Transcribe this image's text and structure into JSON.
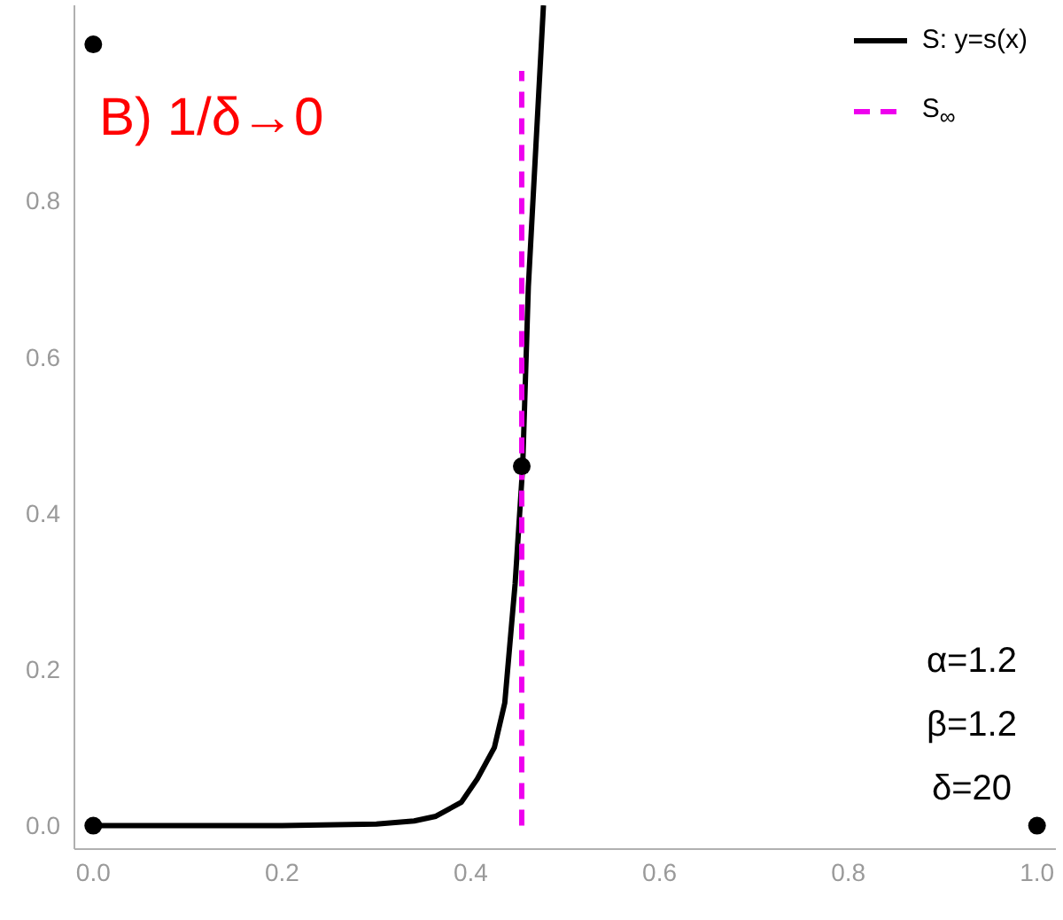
{
  "chart_data": {
    "type": "line",
    "annotations": [
      "B) 1/δ→0",
      "α=1.2",
      "β=1.2",
      "δ=20"
    ],
    "xlim": [
      -0.02,
      1.02
    ],
    "xticks": [
      {
        "value": 0,
        "label": "0.0"
      },
      0.2,
      0.4,
      0.6,
      0.8,
      {
        "value": 1,
        "label": "1.0"
      }
    ],
    "ylim": [
      -0.03,
      1.05
    ],
    "yticks": [
      {
        "value": 0,
        "label": "0.0"
      },
      0.2,
      0.4,
      0.6,
      0.8
    ],
    "legend": "top right",
    "marker": "none",
    "series": [
      {
        "name": "S: y=s(x)",
        "color": "#000000",
        "line_style": "solid",
        "x": [
          0,
          0.2,
          0.3,
          0.34,
          0.363,
          0.39,
          0.407,
          0.425,
          0.436,
          0.447,
          0.455,
          0.461,
          0.469,
          0.477
        ],
        "values": [
          0,
          0,
          0.002,
          0.006,
          0.012,
          0.03,
          0.06,
          0.1,
          0.157,
          0.31,
          0.46,
          0.69,
          0.87,
          1.05
        ]
      },
      {
        "name": "S$_{∞}$",
        "color": "#ee00ee",
        "line_style": "dashed",
        "x": [
          0.454,
          0.454
        ],
        "values": [
          0,
          0.966
        ]
      },
      {
        "color": "#000000",
        "type": "scatter",
        "marker": "circle",
        "x": [
          0,
          0,
          0.454,
          1
        ],
        "values": [
          0,
          1,
          0.46,
          0
        ]
      }
    ]
  }
}
